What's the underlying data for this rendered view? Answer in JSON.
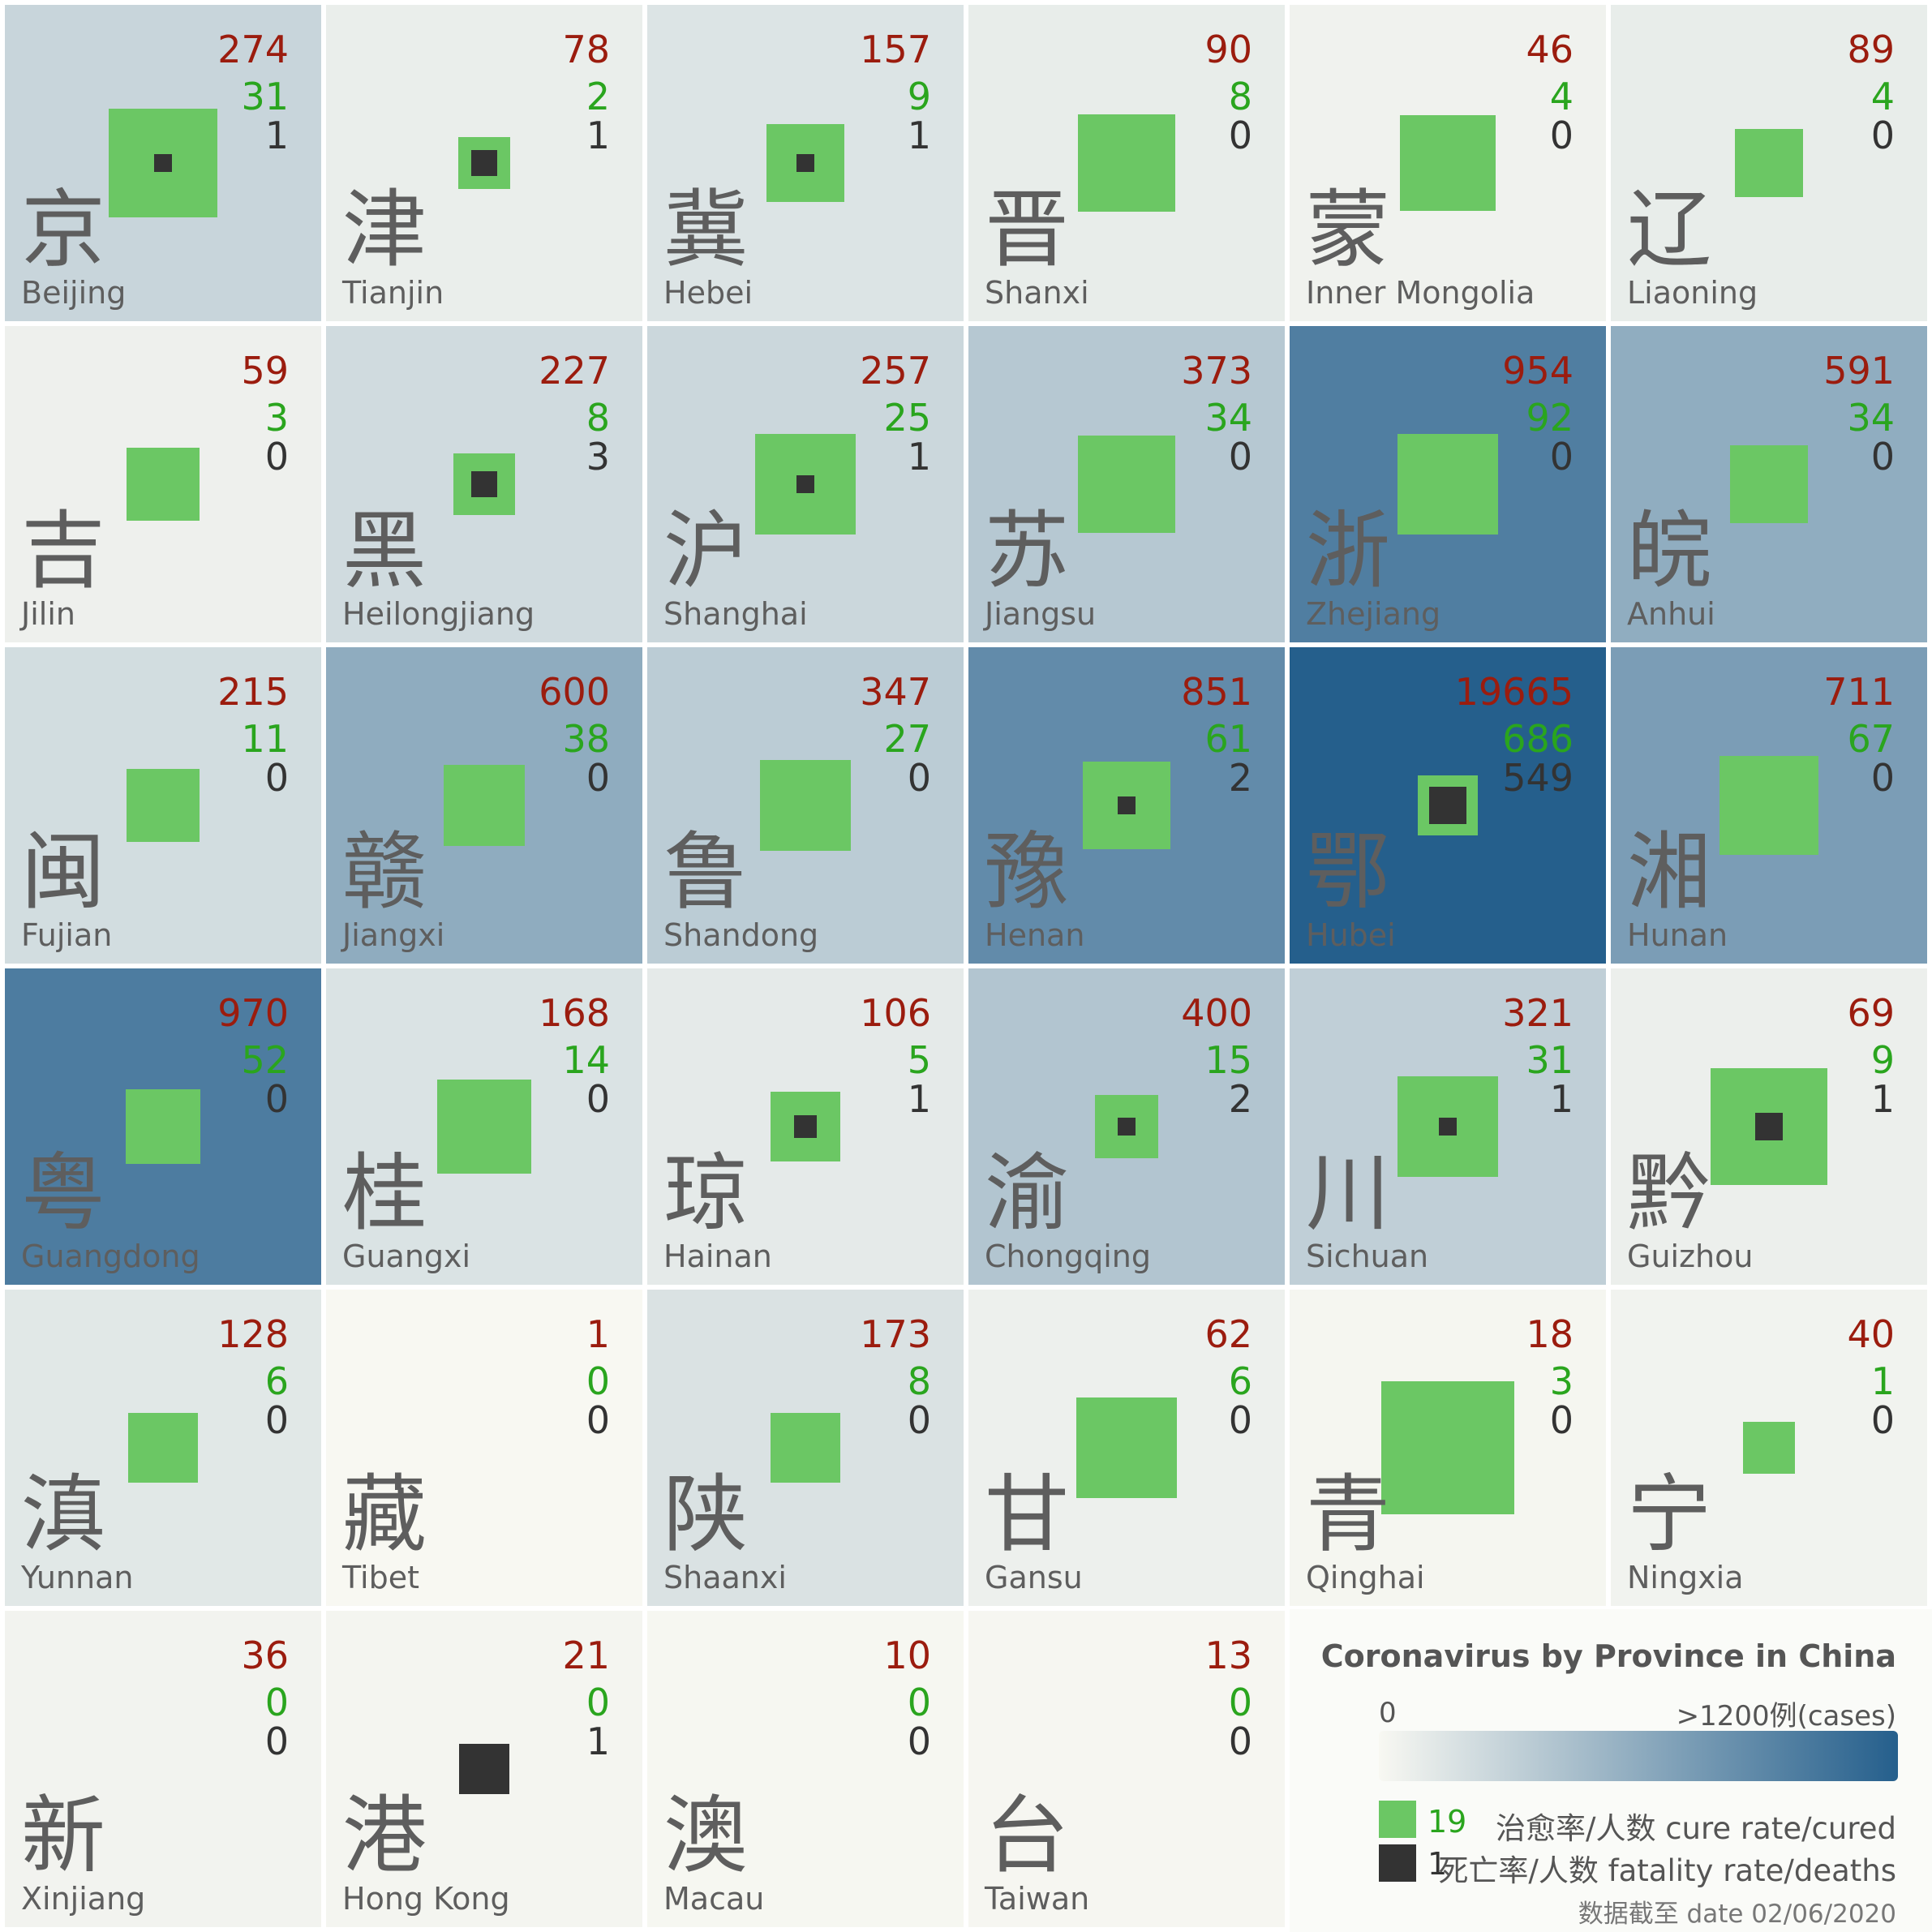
{
  "chart_data": {
    "type": "heatmap",
    "title": "Coronavirus by Province in China",
    "colorbar": {
      "min_label": "0",
      "max_label": ">1200例(cases)",
      "max_value": 1200,
      "colors": [
        "#f8f8f2",
        "#255f8c"
      ]
    },
    "legend": {
      "cure_sample": "19",
      "cure_label": "治愈率/人数 cure rate/cured",
      "death_sample": "1",
      "death_label": "死亡率/人数 fatality rate/deaths",
      "date_label": "数据截至 date 02/06/2020"
    },
    "colors": {
      "confirmed": "#9b1c0e",
      "cured": "#2aa51e",
      "deaths": "#333333",
      "cure_square": "#6bc764",
      "death_square": "#333333"
    },
    "provinces": [
      {
        "zh": "京",
        "en": "Beijing",
        "confirmed": 274,
        "cured": 31,
        "deaths": 1
      },
      {
        "zh": "津",
        "en": "Tianjin",
        "confirmed": 78,
        "cured": 2,
        "deaths": 1
      },
      {
        "zh": "冀",
        "en": "Hebei",
        "confirmed": 157,
        "cured": 9,
        "deaths": 1
      },
      {
        "zh": "晋",
        "en": "Shanxi",
        "confirmed": 90,
        "cured": 8,
        "deaths": 0
      },
      {
        "zh": "蒙",
        "en": "Inner Mongolia",
        "confirmed": 46,
        "cured": 4,
        "deaths": 0
      },
      {
        "zh": "辽",
        "en": "Liaoning",
        "confirmed": 89,
        "cured": 4,
        "deaths": 0
      },
      {
        "zh": "吉",
        "en": "Jilin",
        "confirmed": 59,
        "cured": 3,
        "deaths": 0
      },
      {
        "zh": "黑",
        "en": "Heilongjiang",
        "confirmed": 227,
        "cured": 8,
        "deaths": 3
      },
      {
        "zh": "沪",
        "en": "Shanghai",
        "confirmed": 257,
        "cured": 25,
        "deaths": 1
      },
      {
        "zh": "苏",
        "en": "Jiangsu",
        "confirmed": 373,
        "cured": 34,
        "deaths": 0
      },
      {
        "zh": "浙",
        "en": "Zhejiang",
        "confirmed": 954,
        "cured": 92,
        "deaths": 0
      },
      {
        "zh": "皖",
        "en": "Anhui",
        "confirmed": 591,
        "cured": 34,
        "deaths": 0
      },
      {
        "zh": "闽",
        "en": "Fujian",
        "confirmed": 215,
        "cured": 11,
        "deaths": 0
      },
      {
        "zh": "赣",
        "en": "Jiangxi",
        "confirmed": 600,
        "cured": 38,
        "deaths": 0
      },
      {
        "zh": "鲁",
        "en": "Shandong",
        "confirmed": 347,
        "cured": 27,
        "deaths": 0
      },
      {
        "zh": "豫",
        "en": "Henan",
        "confirmed": 851,
        "cured": 61,
        "deaths": 2
      },
      {
        "zh": "鄂",
        "en": "Hubei",
        "confirmed": 19665,
        "cured": 686,
        "deaths": 549
      },
      {
        "zh": "湘",
        "en": "Hunan",
        "confirmed": 711,
        "cured": 67,
        "deaths": 0
      },
      {
        "zh": "粤",
        "en": "Guangdong",
        "confirmed": 970,
        "cured": 52,
        "deaths": 0
      },
      {
        "zh": "桂",
        "en": "Guangxi",
        "confirmed": 168,
        "cured": 14,
        "deaths": 0
      },
      {
        "zh": "琼",
        "en": "Hainan",
        "confirmed": 106,
        "cured": 5,
        "deaths": 1
      },
      {
        "zh": "渝",
        "en": "Chongqing",
        "confirmed": 400,
        "cured": 15,
        "deaths": 2
      },
      {
        "zh": "川",
        "en": "Sichuan",
        "confirmed": 321,
        "cured": 31,
        "deaths": 1
      },
      {
        "zh": "黔",
        "en": "Guizhou",
        "confirmed": 69,
        "cured": 9,
        "deaths": 1
      },
      {
        "zh": "滇",
        "en": "Yunnan",
        "confirmed": 128,
        "cured": 6,
        "deaths": 0
      },
      {
        "zh": "藏",
        "en": "Tibet",
        "confirmed": 1,
        "cured": 0,
        "deaths": 0
      },
      {
        "zh": "陕",
        "en": "Shaanxi",
        "confirmed": 173,
        "cured": 8,
        "deaths": 0
      },
      {
        "zh": "甘",
        "en": "Gansu",
        "confirmed": 62,
        "cured": 6,
        "deaths": 0
      },
      {
        "zh": "青",
        "en": "Qinghai",
        "confirmed": 18,
        "cured": 3,
        "deaths": 0
      },
      {
        "zh": "宁",
        "en": "Ningxia",
        "confirmed": 40,
        "cured": 1,
        "deaths": 0
      },
      {
        "zh": "新",
        "en": "Xinjiang",
        "confirmed": 36,
        "cured": 0,
        "deaths": 0
      },
      {
        "zh": "港",
        "en": "Hong Kong",
        "confirmed": 21,
        "cured": 0,
        "deaths": 1
      },
      {
        "zh": "澳",
        "en": "Macau",
        "confirmed": 10,
        "cured": 0,
        "deaths": 0
      },
      {
        "zh": "台",
        "en": "Taiwan",
        "confirmed": 13,
        "cured": 0,
        "deaths": 0
      }
    ]
  }
}
